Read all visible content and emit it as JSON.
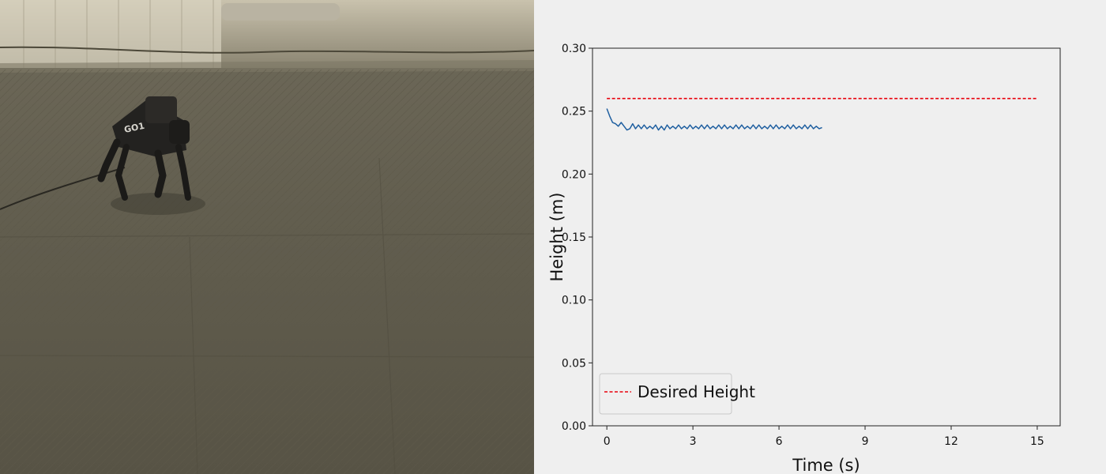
{
  "photo": {
    "robot_label": "GO1"
  },
  "chart_data": {
    "type": "line",
    "title": "",
    "xlabel": "Time (s)",
    "ylabel": "Height (m)",
    "xlim": [
      -0.5,
      15.8
    ],
    "ylim": [
      0.0,
      0.3
    ],
    "xticks": [
      0,
      3,
      6,
      9,
      12,
      15
    ],
    "yticks": [
      0.0,
      0.05,
      0.1,
      0.15,
      0.2,
      0.25,
      0.3
    ],
    "ytick_labels": [
      "0.00",
      "0.05",
      "0.10",
      "0.15",
      "0.20",
      "0.25",
      "0.30"
    ],
    "grid": false,
    "legend_position": "lower-left",
    "series": [
      {
        "name": "Desired Height",
        "style": "dashed",
        "color": "#e8000b",
        "x": [
          0,
          15
        ],
        "y": [
          0.26,
          0.26
        ]
      },
      {
        "name": "",
        "style": "solid",
        "color": "#1f5fa0",
        "x": [
          0.0,
          0.1,
          0.2,
          0.3,
          0.4,
          0.5,
          0.6,
          0.7,
          0.8,
          0.9,
          1.0,
          1.1,
          1.2,
          1.3,
          1.4,
          1.5,
          1.6,
          1.7,
          1.8,
          1.9,
          2.0,
          2.1,
          2.2,
          2.3,
          2.4,
          2.5,
          2.6,
          2.7,
          2.8,
          2.9,
          3.0,
          3.1,
          3.2,
          3.3,
          3.4,
          3.5,
          3.6,
          3.7,
          3.8,
          3.9,
          4.0,
          4.1,
          4.2,
          4.3,
          4.4,
          4.5,
          4.6,
          4.7,
          4.8,
          4.9,
          5.0,
          5.1,
          5.2,
          5.3,
          5.4,
          5.5,
          5.6,
          5.7,
          5.8,
          5.9,
          6.0,
          6.1,
          6.2,
          6.3,
          6.4,
          6.5,
          6.6,
          6.7,
          6.8,
          6.9,
          7.0,
          7.1,
          7.2,
          7.3,
          7.4,
          7.5
        ],
        "y": [
          0.252,
          0.246,
          0.241,
          0.24,
          0.238,
          0.241,
          0.238,
          0.235,
          0.236,
          0.24,
          0.236,
          0.239,
          0.236,
          0.239,
          0.236,
          0.238,
          0.236,
          0.239,
          0.235,
          0.238,
          0.235,
          0.239,
          0.236,
          0.238,
          0.236,
          0.239,
          0.236,
          0.238,
          0.236,
          0.239,
          0.236,
          0.238,
          0.236,
          0.239,
          0.236,
          0.239,
          0.236,
          0.238,
          0.236,
          0.239,
          0.236,
          0.239,
          0.236,
          0.238,
          0.236,
          0.239,
          0.236,
          0.239,
          0.236,
          0.238,
          0.236,
          0.239,
          0.236,
          0.239,
          0.236,
          0.238,
          0.236,
          0.239,
          0.236,
          0.239,
          0.236,
          0.238,
          0.236,
          0.239,
          0.236,
          0.239,
          0.236,
          0.238,
          0.236,
          0.239,
          0.236,
          0.239,
          0.236,
          0.238,
          0.236,
          0.237
        ]
      }
    ]
  }
}
